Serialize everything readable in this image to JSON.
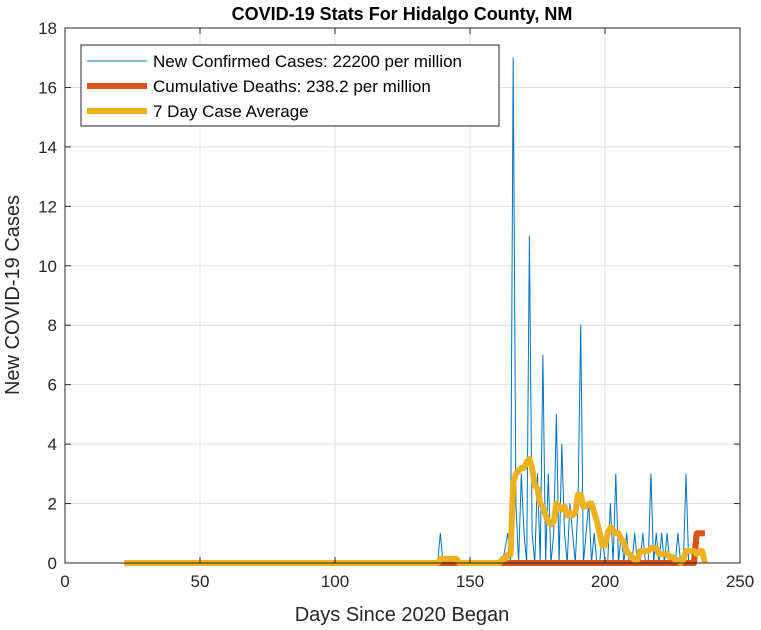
{
  "chart_data": {
    "type": "line",
    "title": "COVID-19 Stats For Hidalgo County, NM",
    "xlabel": "Days Since 2020 Began",
    "ylabel": "New COVID-19 Cases",
    "xlim": [
      0,
      250
    ],
    "ylim": [
      0,
      18
    ],
    "xticks": [
      0,
      50,
      100,
      150,
      200,
      250
    ],
    "yticks": [
      0,
      2,
      4,
      6,
      8,
      10,
      12,
      14,
      16,
      18
    ],
    "grid": true,
    "legend_position": "top-left",
    "series": [
      {
        "name": "New Confirmed Cases: 22200 per million",
        "color": "#0072BD",
        "x": [
          22,
          138,
          139,
          140,
          162,
          164,
          165,
          166,
          167,
          168,
          169,
          170,
          171,
          172,
          173,
          174,
          175,
          176,
          177,
          178,
          179,
          180,
          181,
          182,
          183,
          184,
          185,
          186,
          187,
          188,
          189,
          190,
          191,
          192,
          193,
          194,
          195,
          196,
          197,
          198,
          199,
          200,
          201,
          202,
          203,
          204,
          205,
          206,
          207,
          208,
          209,
          210,
          211,
          212,
          213,
          214,
          215,
          216,
          217,
          218,
          219,
          220,
          221,
          222,
          223,
          224,
          225,
          226,
          227,
          228,
          229,
          230,
          231,
          232,
          233,
          234,
          235,
          236,
          237
        ],
        "y": [
          0,
          0,
          1,
          0,
          0,
          1,
          0,
          17,
          2,
          0,
          3,
          1,
          0,
          11,
          1,
          0,
          3,
          0,
          7,
          0,
          3,
          0,
          1,
          5,
          0,
          4,
          1,
          0,
          2,
          1,
          0,
          2,
          8,
          0,
          1,
          2,
          0,
          1,
          0,
          0,
          1,
          0,
          0,
          2,
          0,
          3,
          0,
          1,
          0,
          1,
          0,
          0,
          1,
          0,
          0,
          1,
          0,
          0,
          3,
          0,
          1,
          0,
          1,
          0,
          1,
          0,
          0,
          0,
          1,
          0,
          0,
          3,
          0,
          0,
          1,
          0,
          0,
          0,
          0
        ]
      },
      {
        "name": "Cumulative Deaths: 238.2 per million",
        "color": "#D95319",
        "x": [
          22,
          233,
          234,
          235,
          236,
          237
        ],
        "y": [
          0,
          0,
          1,
          1,
          1,
          1
        ]
      },
      {
        "name": "7 Day Case Average",
        "color": "#EDB120",
        "x": [
          22,
          138,
          139,
          140,
          141,
          142,
          143,
          144,
          145,
          146,
          147,
          148,
          160,
          161,
          162,
          163,
          164,
          165,
          166,
          167,
          168,
          169,
          170,
          171,
          172,
          173,
          174,
          175,
          176,
          177,
          178,
          179,
          180,
          181,
          182,
          183,
          184,
          185,
          186,
          187,
          188,
          189,
          190,
          191,
          192,
          193,
          194,
          195,
          196,
          197,
          198,
          199,
          200,
          201,
          202,
          203,
          204,
          205,
          206,
          207,
          208,
          209,
          210,
          211,
          212,
          213,
          214,
          215,
          216,
          217,
          218,
          219,
          220,
          221,
          222,
          223,
          224,
          225,
          226,
          227,
          228,
          229,
          230,
          231,
          232,
          233,
          234,
          235,
          236,
          237
        ],
        "y": [
          0,
          0,
          0.14,
          0.14,
          0.14,
          0.14,
          0.14,
          0.14,
          0.14,
          0,
          0,
          0,
          0,
          0,
          0.14,
          0.14,
          0.28,
          0.28,
          2.7,
          3.0,
          3.1,
          3.2,
          3.2,
          3.4,
          3.5,
          3.2,
          2.6,
          2.5,
          2.0,
          1.9,
          1.6,
          1.4,
          1.3,
          1.4,
          2.0,
          1.9,
          1.8,
          1.9,
          1.6,
          1.7,
          1.6,
          1.7,
          2.3,
          2.3,
          1.9,
          1.9,
          2.0,
          2.0,
          1.7,
          1.4,
          1.0,
          0.6,
          0.6,
          1.0,
          1.2,
          1.1,
          1.0,
          1.0,
          0.8,
          0.7,
          0.4,
          0.3,
          0.2,
          0.1,
          0.1,
          0.4,
          0.4,
          0.4,
          0.4,
          0.5,
          0.5,
          0.5,
          0.3,
          0.3,
          0.3,
          0.3,
          0.2,
          0.2,
          0.1,
          0.1,
          0,
          0.1,
          0.4,
          0.4,
          0.4,
          0.4,
          0.3,
          0.4,
          0.4,
          0
        ]
      }
    ]
  }
}
